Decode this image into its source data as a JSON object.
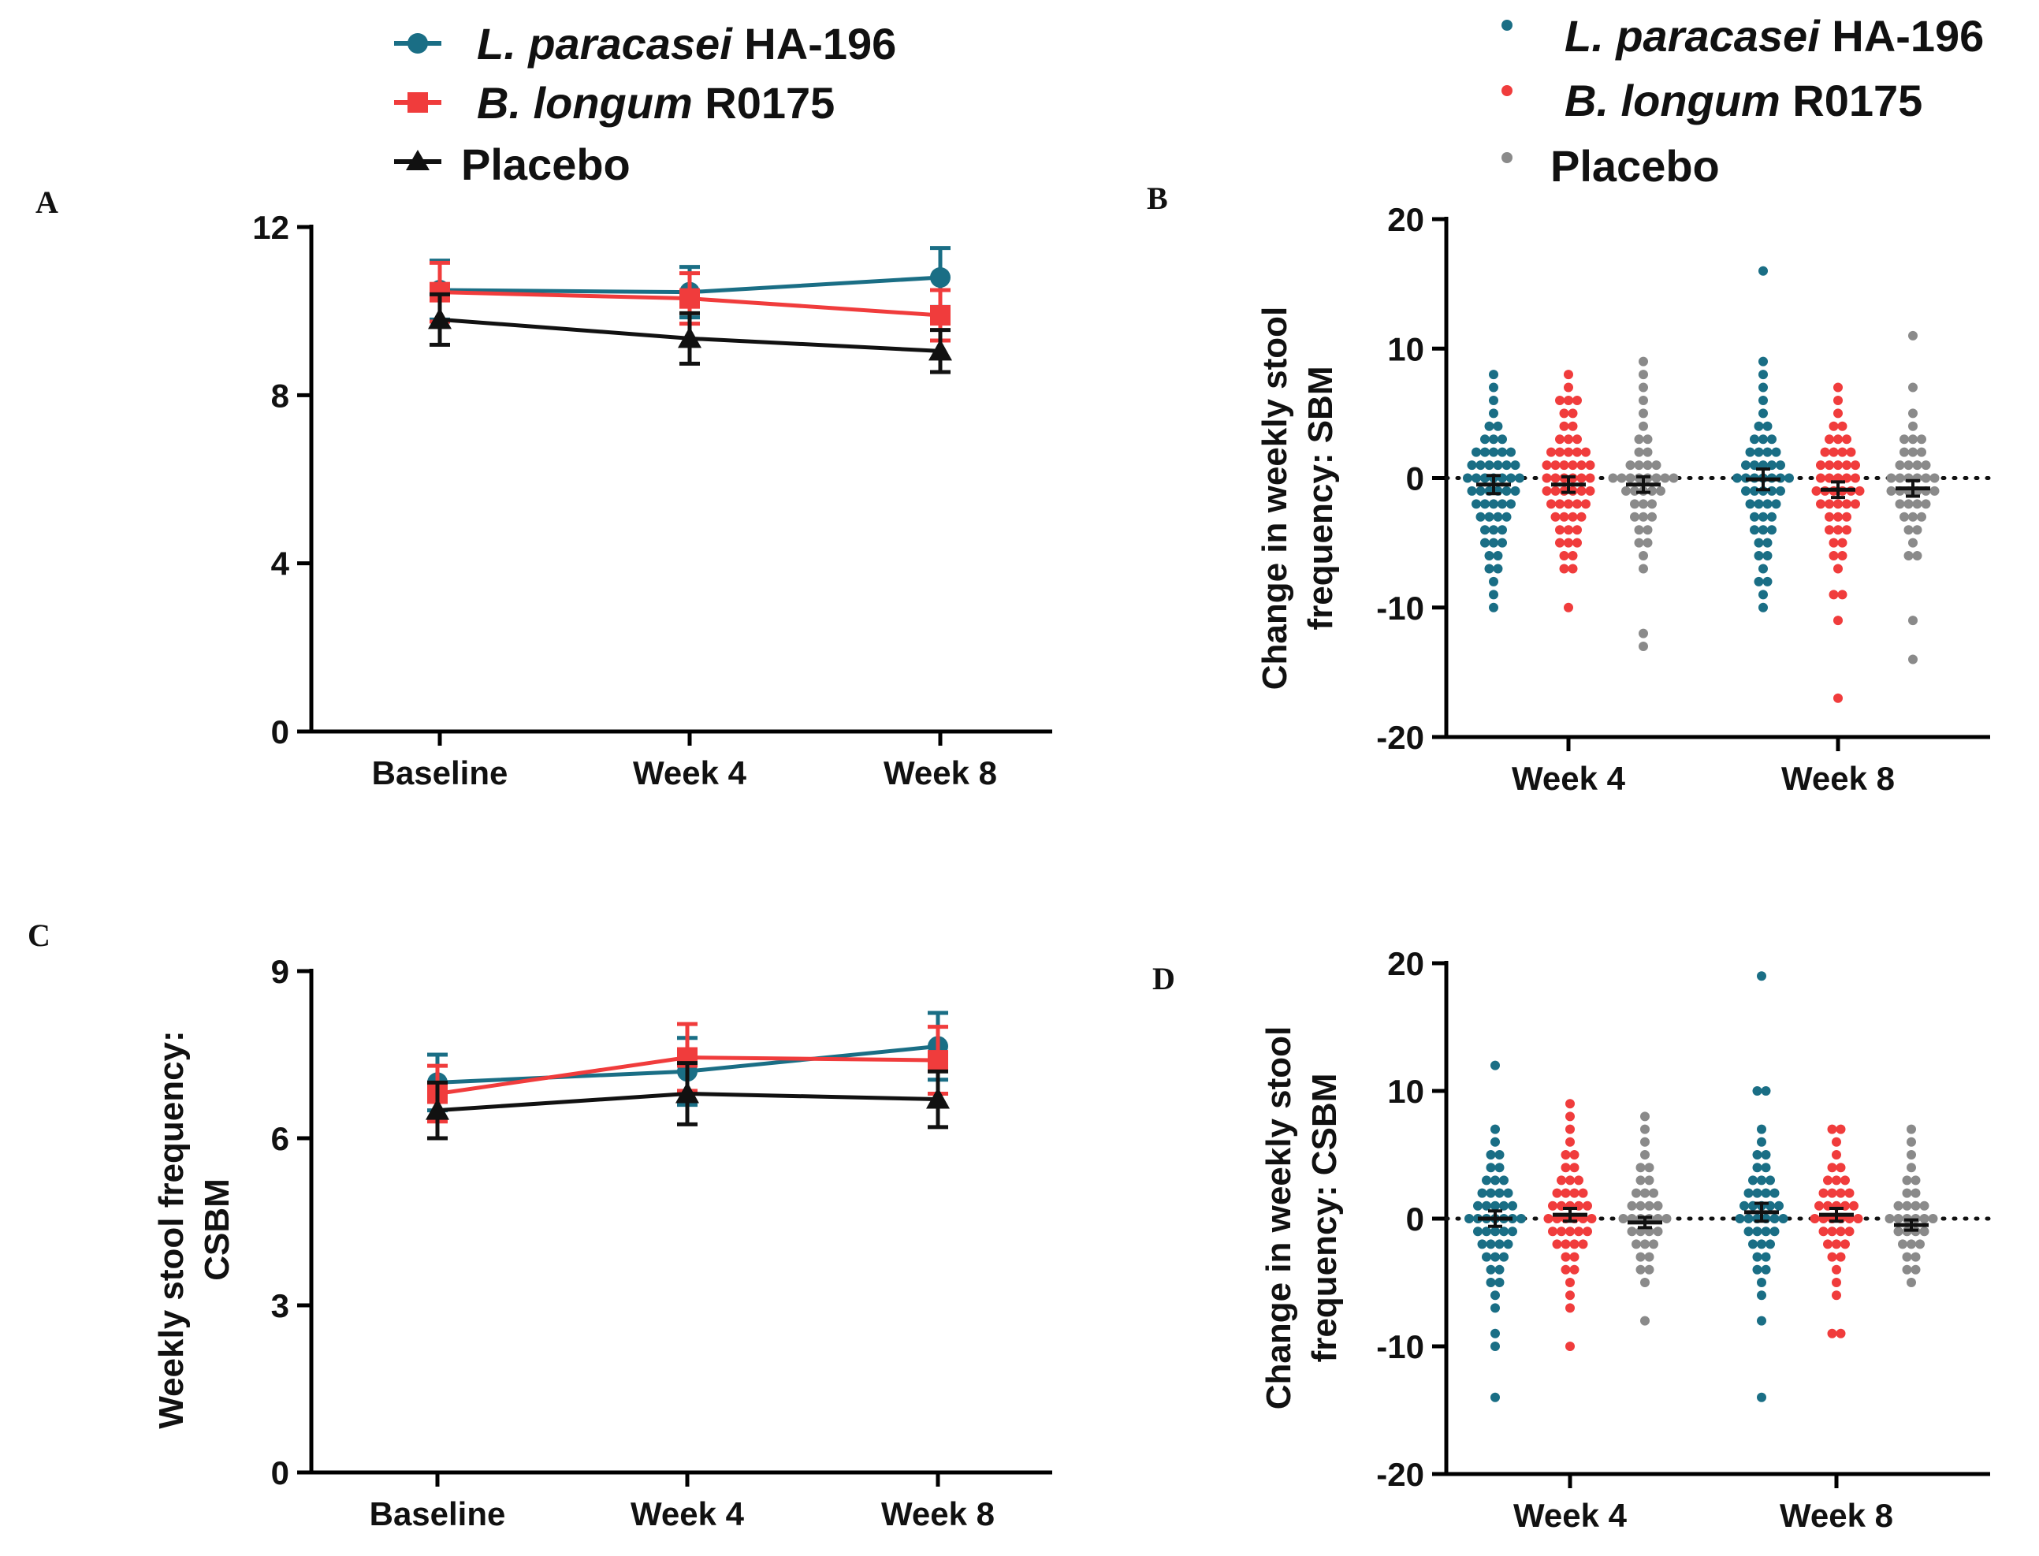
{
  "colors": {
    "HA196": "#1a6e85",
    "R0175": "#f03c3c",
    "placebo_line": "#111111",
    "placebo_dot": "#8a8a8a",
    "mean_bar": "#111111"
  },
  "legend_left": [
    {
      "italic": "L. paracasei",
      "rest": " HA-196",
      "series": "HA196"
    },
    {
      "italic": "B. longum",
      "rest": " R0175",
      "series": "R0175"
    },
    {
      "italic": "",
      "rest": "Placebo",
      "series": "placebo"
    }
  ],
  "legend_right": [
    {
      "italic": "L. paracasei",
      "rest": " HA-196",
      "series": "HA196"
    },
    {
      "italic": "B. longum",
      "rest": " R0175",
      "series": "R0175"
    },
    {
      "italic": "",
      "rest": "Placebo",
      "series": "placebo"
    }
  ],
  "panel_labels": {
    "A": "A",
    "B": "B",
    "C": "C",
    "D": "D"
  },
  "chart_data": [
    {
      "id": "A",
      "type": "line",
      "categories": [
        "Baseline",
        "Week 4",
        "Week 8"
      ],
      "yticks": [
        "0",
        "4",
        "8",
        "12"
      ],
      "ylim": [
        0,
        12
      ],
      "ylabel": "",
      "series": [
        {
          "key": "HA196",
          "name": "L. paracasei HA-196",
          "marker": "circle",
          "values": [
            10.5,
            10.45,
            10.8
          ],
          "err": [
            0.7,
            0.6,
            0.7
          ]
        },
        {
          "key": "R0175",
          "name": "B. longum R0175",
          "marker": "square",
          "values": [
            10.45,
            10.3,
            9.9
          ],
          "err": [
            0.7,
            0.6,
            0.6
          ]
        },
        {
          "key": "placebo",
          "name": "Placebo",
          "marker": "triangle",
          "values": [
            9.8,
            9.35,
            9.05
          ],
          "err": [
            0.6,
            0.6,
            0.5
          ]
        }
      ]
    },
    {
      "id": "B",
      "type": "scatter",
      "categories": [
        "Week 4",
        "Week 8"
      ],
      "yticks": [
        "-20",
        "-10",
        "0",
        "10",
        "20"
      ],
      "ylim": [
        -20,
        20
      ],
      "ylabel": [
        "Change in weekly stool",
        "frequency: SBM"
      ],
      "series": [
        {
          "key": "HA196",
          "name": "L. paracasei HA-196",
          "points": [
            [
              -10,
              -9,
              -8,
              -7,
              -7,
              -6,
              -6,
              -5,
              -5,
              -5,
              -4,
              -4,
              -4,
              -3,
              -3,
              -3,
              -3,
              -2,
              -2,
              -2,
              -2,
              -2,
              -1,
              -1,
              -1,
              -1,
              -1,
              -1,
              0,
              0,
              0,
              0,
              0,
              0,
              0,
              1,
              1,
              1,
              1,
              1,
              1,
              2,
              2,
              2,
              2,
              2,
              3,
              3,
              3,
              4,
              4,
              5,
              6,
              7,
              8
            ],
            [
              -10,
              -9,
              -8,
              -8,
              -7,
              -6,
              -6,
              -5,
              -5,
              -4,
              -4,
              -4,
              -3,
              -3,
              -3,
              -2,
              -2,
              -2,
              -2,
              -1,
              -1,
              -1,
              -1,
              -1,
              0,
              0,
              0,
              0,
              0,
              0,
              0,
              1,
              1,
              1,
              1,
              1,
              2,
              2,
              2,
              2,
              3,
              3,
              3,
              4,
              4,
              5,
              6,
              7,
              8,
              9,
              16
            ]
          ],
          "mean": [
            -0.5,
            -0.1
          ],
          "err": [
            0.7,
            0.8
          ]
        },
        {
          "key": "R0175",
          "name": "B. longum R0175",
          "points": [
            [
              -10,
              -7,
              -7,
              -6,
              -6,
              -5,
              -5,
              -5,
              -4,
              -4,
              -4,
              -3,
              -3,
              -3,
              -3,
              -2,
              -2,
              -2,
              -2,
              -2,
              -1,
              -1,
              -1,
              -1,
              -1,
              -1,
              0,
              0,
              0,
              0,
              0,
              0,
              1,
              1,
              1,
              1,
              1,
              1,
              2,
              2,
              2,
              2,
              2,
              3,
              3,
              3,
              4,
              4,
              5,
              5,
              6,
              6,
              6,
              7,
              8
            ],
            [
              -17,
              -11,
              -9,
              -9,
              -7,
              -6,
              -6,
              -5,
              -5,
              -4,
              -4,
              -4,
              -3,
              -3,
              -3,
              -2,
              -2,
              -2,
              -2,
              -2,
              -1,
              -1,
              -1,
              -1,
              -1,
              -1,
              0,
              0,
              0,
              0,
              0,
              1,
              1,
              1,
              1,
              1,
              2,
              2,
              2,
              2,
              3,
              3,
              3,
              4,
              4,
              5,
              6,
              7
            ]
          ],
          "mean": [
            -0.5,
            -0.9
          ],
          "err": [
            0.6,
            0.6
          ]
        },
        {
          "key": "placebo",
          "name": "Placebo",
          "points": [
            [
              -13,
              -12,
              -7,
              -6,
              -5,
              -5,
              -4,
              -4,
              -3,
              -3,
              -3,
              -2,
              -2,
              -2,
              -1,
              -1,
              -1,
              -1,
              -1,
              0,
              0,
              0,
              0,
              0,
              0,
              0,
              0,
              1,
              1,
              1,
              1,
              2,
              2,
              3,
              3,
              4,
              5,
              6,
              7,
              8,
              9
            ],
            [
              -14,
              -11,
              -6,
              -6,
              -5,
              -4,
              -4,
              -3,
              -3,
              -3,
              -2,
              -2,
              -2,
              -2,
              -1,
              -1,
              -1,
              -1,
              -1,
              -1,
              0,
              0,
              0,
              0,
              0,
              0,
              1,
              1,
              1,
              1,
              2,
              2,
              2,
              3,
              3,
              3,
              4,
              5,
              7,
              11
            ]
          ],
          "mean": [
            -0.5,
            -0.8
          ],
          "err": [
            0.6,
            0.6
          ]
        }
      ]
    },
    {
      "id": "C",
      "type": "line",
      "categories": [
        "Baseline",
        "Week 4",
        "Week 8"
      ],
      "yticks": [
        "0",
        "3",
        "6",
        "9"
      ],
      "ylim": [
        0,
        9
      ],
      "ylabel": [
        "Weekly stool frequency:",
        "CSBM"
      ],
      "series": [
        {
          "key": "HA196",
          "name": "L. paracasei HA-196",
          "marker": "circle",
          "values": [
            7.0,
            7.2,
            7.65
          ],
          "err": [
            0.5,
            0.6,
            0.6
          ]
        },
        {
          "key": "R0175",
          "name": "B. longum R0175",
          "marker": "square",
          "values": [
            6.8,
            7.45,
            7.4
          ],
          "err": [
            0.5,
            0.6,
            0.6
          ]
        },
        {
          "key": "placebo",
          "name": "Placebo",
          "marker": "triangle",
          "values": [
            6.5,
            6.8,
            6.7
          ],
          "err": [
            0.5,
            0.55,
            0.5
          ]
        }
      ]
    },
    {
      "id": "D",
      "type": "scatter",
      "categories": [
        "Week 4",
        "Week 8"
      ],
      "yticks": [
        "-20",
        "-10",
        "0",
        "10",
        "20"
      ],
      "ylim": [
        -20,
        20
      ],
      "ylabel": [
        "Change in weekly stool",
        "frequency: CSBM"
      ],
      "series": [
        {
          "key": "HA196",
          "name": "L. paracasei HA-196",
          "points": [
            [
              -14,
              -10,
              -9,
              -7,
              -6,
              -5,
              -5,
              -4,
              -4,
              -3,
              -3,
              -3,
              -2,
              -2,
              -2,
              -2,
              -1,
              -1,
              -1,
              -1,
              -1,
              0,
              0,
              0,
              0,
              0,
              0,
              0,
              1,
              1,
              1,
              1,
              1,
              2,
              2,
              2,
              2,
              3,
              3,
              3,
              4,
              4,
              5,
              5,
              6,
              7,
              12
            ],
            [
              -14,
              -8,
              -6,
              -5,
              -4,
              -4,
              -3,
              -3,
              -2,
              -2,
              -2,
              -1,
              -1,
              -1,
              -1,
              0,
              0,
              0,
              0,
              0,
              0,
              1,
              1,
              1,
              1,
              1,
              2,
              2,
              2,
              2,
              3,
              3,
              3,
              4,
              4,
              5,
              5,
              6,
              7,
              10,
              10,
              19
            ]
          ],
          "mean": [
            0.0,
            0.5
          ],
          "err": [
            0.6,
            0.7
          ]
        },
        {
          "key": "R0175",
          "name": "B. longum R0175",
          "points": [
            [
              -10,
              -7,
              -6,
              -5,
              -4,
              -4,
              -3,
              -3,
              -2,
              -2,
              -2,
              -2,
              -1,
              -1,
              -1,
              -1,
              -1,
              0,
              0,
              0,
              0,
              0,
              0,
              1,
              1,
              1,
              1,
              1,
              2,
              2,
              2,
              2,
              3,
              3,
              3,
              4,
              4,
              5,
              5,
              6,
              7,
              8,
              9
            ],
            [
              -9,
              -9,
              -6,
              -5,
              -4,
              -3,
              -3,
              -2,
              -2,
              -2,
              -1,
              -1,
              -1,
              -1,
              0,
              0,
              0,
              0,
              0,
              0,
              1,
              1,
              1,
              1,
              1,
              2,
              2,
              2,
              2,
              3,
              3,
              3,
              4,
              4,
              5,
              6,
              7,
              7
            ]
          ],
          "mean": [
            0.3,
            0.3
          ],
          "err": [
            0.5,
            0.5
          ]
        },
        {
          "key": "placebo",
          "name": "Placebo",
          "points": [
            [
              -8,
              -5,
              -4,
              -4,
              -3,
              -3,
              -2,
              -2,
              -2,
              -1,
              -1,
              -1,
              -1,
              0,
              0,
              0,
              0,
              0,
              0,
              1,
              1,
              1,
              1,
              2,
              2,
              2,
              3,
              3,
              4,
              4,
              5,
              6,
              7,
              8
            ],
            [
              -5,
              -4,
              -4,
              -3,
              -3,
              -2,
              -2,
              -2,
              -1,
              -1,
              -1,
              -1,
              0,
              0,
              0,
              0,
              0,
              0,
              1,
              1,
              1,
              1,
              2,
              2,
              3,
              3,
              4,
              5,
              6,
              7
            ]
          ],
          "mean": [
            -0.3,
            -0.5
          ],
          "err": [
            0.4,
            0.4
          ]
        }
      ]
    }
  ]
}
